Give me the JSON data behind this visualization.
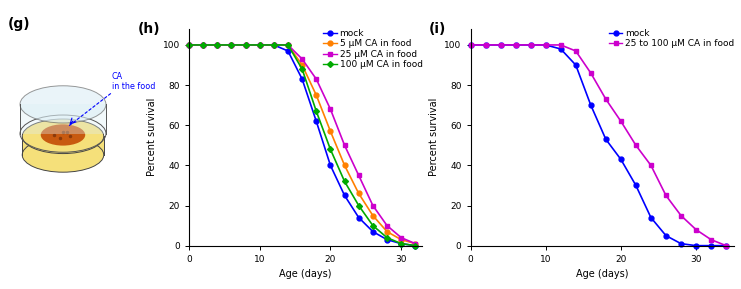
{
  "panel_h": {
    "mock": {
      "x": [
        0,
        2,
        4,
        6,
        8,
        10,
        12,
        14,
        16,
        18,
        20,
        22,
        24,
        26,
        28,
        30,
        32
      ],
      "y": [
        100,
        100,
        100,
        100,
        100,
        100,
        100,
        97,
        83,
        62,
        40,
        25,
        14,
        7,
        3,
        1,
        0
      ]
    },
    "5uM": {
      "x": [
        0,
        2,
        4,
        6,
        8,
        10,
        12,
        14,
        16,
        18,
        20,
        22,
        24,
        26,
        28,
        30,
        32
      ],
      "y": [
        100,
        100,
        100,
        100,
        100,
        100,
        100,
        100,
        90,
        75,
        57,
        40,
        26,
        15,
        7,
        3,
        1
      ]
    },
    "25uM": {
      "x": [
        0,
        2,
        4,
        6,
        8,
        10,
        12,
        14,
        16,
        18,
        20,
        22,
        24,
        26,
        28,
        30,
        32
      ],
      "y": [
        100,
        100,
        100,
        100,
        100,
        100,
        100,
        100,
        93,
        83,
        68,
        50,
        35,
        20,
        10,
        4,
        1
      ]
    },
    "100uM": {
      "x": [
        0,
        2,
        4,
        6,
        8,
        10,
        12,
        14,
        16,
        18,
        20,
        22,
        24,
        26,
        28,
        30,
        32
      ],
      "y": [
        100,
        100,
        100,
        100,
        100,
        100,
        100,
        100,
        88,
        67,
        48,
        32,
        20,
        10,
        4,
        1,
        0
      ]
    },
    "colors": {
      "mock": "#0000ff",
      "5uM": "#ff8000",
      "25uM": "#cc00cc",
      "100uM": "#00aa00"
    },
    "legend_labels": [
      "mock",
      "5 μM CA in food",
      "25 μM CA in food",
      "100 μM CA in food"
    ],
    "xlabel": "Age (days)",
    "ylabel": "Percent survival",
    "xlim": [
      0,
      33
    ],
    "ylim": [
      0,
      108
    ],
    "xticks": [
      0,
      10,
      20,
      30
    ],
    "yticks": [
      0,
      20,
      40,
      60,
      80,
      100
    ]
  },
  "panel_i": {
    "mock": {
      "x": [
        0,
        2,
        4,
        6,
        8,
        10,
        12,
        14,
        16,
        18,
        20,
        22,
        24,
        26,
        28,
        30,
        32,
        34
      ],
      "y": [
        100,
        100,
        100,
        100,
        100,
        100,
        98,
        90,
        70,
        53,
        43,
        30,
        14,
        5,
        1,
        0,
        0,
        0
      ]
    },
    "25to100uM": {
      "x": [
        0,
        2,
        4,
        6,
        8,
        10,
        12,
        14,
        16,
        18,
        20,
        22,
        24,
        26,
        28,
        30,
        32,
        34
      ],
      "y": [
        100,
        100,
        100,
        100,
        100,
        100,
        100,
        97,
        86,
        73,
        62,
        50,
        40,
        25,
        15,
        8,
        3,
        0
      ]
    },
    "colors": {
      "mock": "#0000ff",
      "25to100uM": "#cc00cc"
    },
    "legend_labels": [
      "mock",
      "25 to 100 μM CA in food"
    ],
    "xlabel": "Age (days)",
    "ylabel": "Percent survival",
    "xlim": [
      0,
      35
    ],
    "ylim": [
      0,
      108
    ],
    "xticks": [
      0,
      10,
      20,
      30
    ],
    "yticks": [
      0,
      20,
      40,
      60,
      80,
      100
    ]
  },
  "label_fontsize": 7,
  "tick_fontsize": 6.5,
  "legend_fontsize": 6.5,
  "panel_label_fontsize": 10,
  "line_width": 1.2,
  "marker_size": 3.5
}
